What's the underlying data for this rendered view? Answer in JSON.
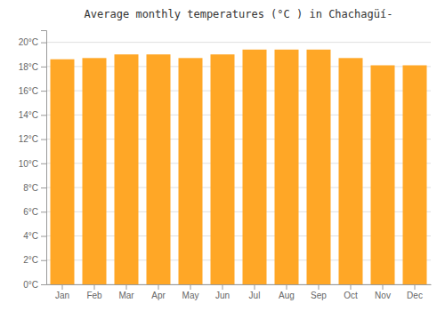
{
  "chart_data": {
    "type": "bar",
    "title": "Average monthly temperatures (°C ) in Chachagüí-",
    "categories": [
      "Jan",
      "Feb",
      "Mar",
      "Apr",
      "May",
      "Jun",
      "Jul",
      "Aug",
      "Sep",
      "Oct",
      "Nov",
      "Dec"
    ],
    "values": [
      18.6,
      18.7,
      19.0,
      19.0,
      18.7,
      19.0,
      19.4,
      19.4,
      19.4,
      18.7,
      18.1,
      18.1
    ],
    "color": "#FFA726",
    "ylim": [
      0,
      21
    ],
    "yticks": [
      {
        "value": 0,
        "label": "0°C"
      },
      {
        "value": 2,
        "label": "2°C"
      },
      {
        "value": 4,
        "label": "4°C"
      },
      {
        "value": 6,
        "label": "6°C"
      },
      {
        "value": 8,
        "label": "8°C"
      },
      {
        "value": 10,
        "label": "10°C"
      },
      {
        "value": 12,
        "label": "12°C"
      },
      {
        "value": 14,
        "label": "14°C"
      },
      {
        "value": 16,
        "label": "16°C"
      },
      {
        "value": 18,
        "label": "18°C"
      },
      {
        "value": 20,
        "label": "20°C"
      }
    ],
    "grid": true
  }
}
